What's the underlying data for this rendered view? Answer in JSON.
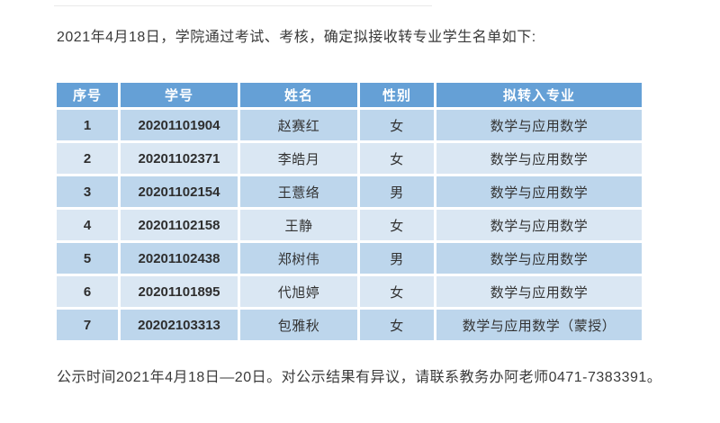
{
  "document": {
    "intro_text": "2021年4月18日，学院通过考试、考核，确定拟接收转专业学生名单如下:",
    "footer_text": "公示时间2021年4月18日—20日。对公示结果有异议，请联系教务办阿老师0471-7383391。"
  },
  "table": {
    "headers": [
      "序号",
      "学号",
      "姓名",
      "性别",
      "拟转入专业"
    ],
    "rows": [
      [
        "1",
        "20201101904",
        "赵赛红",
        "女",
        "数学与应用数学"
      ],
      [
        "2",
        "20201102371",
        "李皓月",
        "女",
        "数学与应用数学"
      ],
      [
        "3",
        "20201102154",
        "王薏络",
        "男",
        "数学与应用数学"
      ],
      [
        "4",
        "20201102158",
        "王静",
        "女",
        "数学与应用数学"
      ],
      [
        "5",
        "20201102438",
        "郑树伟",
        "男",
        "数学与应用数学"
      ],
      [
        "6",
        "20201101895",
        "代旭婷",
        "女",
        "数学与应用数学"
      ],
      [
        "7",
        "20202103313",
        "包雅秋",
        "女",
        "数学与应用数学（蒙授）"
      ]
    ]
  },
  "colors": {
    "header_bg": "#65a0d6",
    "header_text": "#ffffff",
    "row_odd_bg": "#bdd6ec",
    "row_even_bg": "#dae7f3",
    "body_text": "#3a3a3a",
    "cell_text": "#333333"
  }
}
